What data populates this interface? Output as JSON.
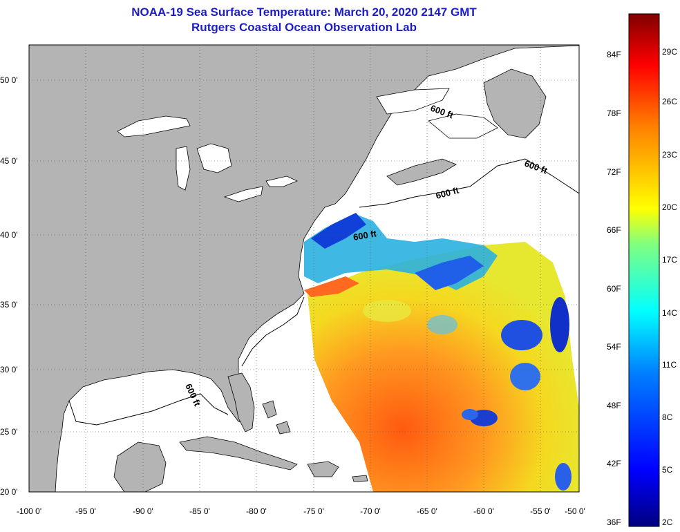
{
  "header": {
    "title": "NOAA-19 Sea Surface Temperature:  March 20, 2020 2147 GMT",
    "subtitle": "Rutgers Coastal Ocean Observation Lab"
  },
  "map": {
    "lat_labels": [
      "50 0'",
      "45 0'",
      "40 0'",
      "35 0'",
      "30 0'",
      "25 0'",
      "20 0'"
    ],
    "lon_labels": [
      "-100 0'",
      "-95 0'",
      "-90 0'",
      "-85 0'",
      "-80 0'",
      "-75 0'",
      "-70 0'",
      "-65 0'",
      "-60 0'",
      "-55 0'",
      "-50 0'"
    ],
    "contour_label": "600 ft",
    "colors": {
      "land": "#b4b4b4",
      "ocean_nodata": "#ffffff",
      "grid": "#555555"
    }
  },
  "colorbar": {
    "fahrenheit_labels": [
      "84F",
      "78F",
      "72F",
      "66F",
      "60F",
      "54F",
      "48F",
      "42F",
      "36F"
    ],
    "celsius_labels": [
      "29C",
      "26C",
      "23C",
      "20C",
      "17C",
      "14C",
      "11C",
      "8C",
      "5C",
      "2C"
    ],
    "colors": [
      "#800000",
      "#ff0000",
      "#ff8000",
      "#ffff00",
      "#00ffff",
      "#0080ff",
      "#0000ff",
      "#000080"
    ]
  }
}
